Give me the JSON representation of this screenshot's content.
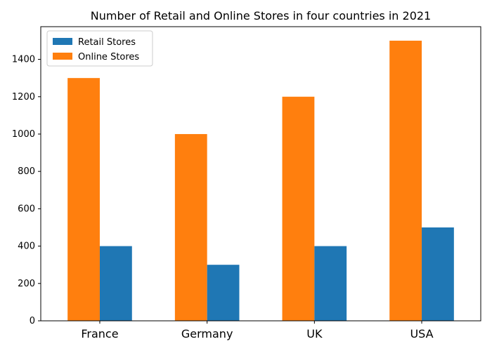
{
  "chart_data": {
    "type": "bar",
    "title": "Number of Retail and Online Stores in four countries in 2021",
    "xlabel": "",
    "ylabel": "",
    "categories": [
      "France",
      "Germany",
      "UK",
      "USA"
    ],
    "series": [
      {
        "name": "Online Stores",
        "values": [
          1300,
          1000,
          1200,
          1500
        ],
        "color": "#ff7f0e"
      },
      {
        "name": "Retail Stores",
        "values": [
          400,
          300,
          400,
          500
        ],
        "color": "#1f77b4"
      }
    ],
    "legend_order": [
      "Retail Stores",
      "Online Stores"
    ],
    "legend_position": "top-left",
    "ylim": [
      0,
      1575
    ],
    "yticks": [
      0,
      200,
      400,
      600,
      800,
      1000,
      1200,
      1400
    ],
    "grid": false
  }
}
